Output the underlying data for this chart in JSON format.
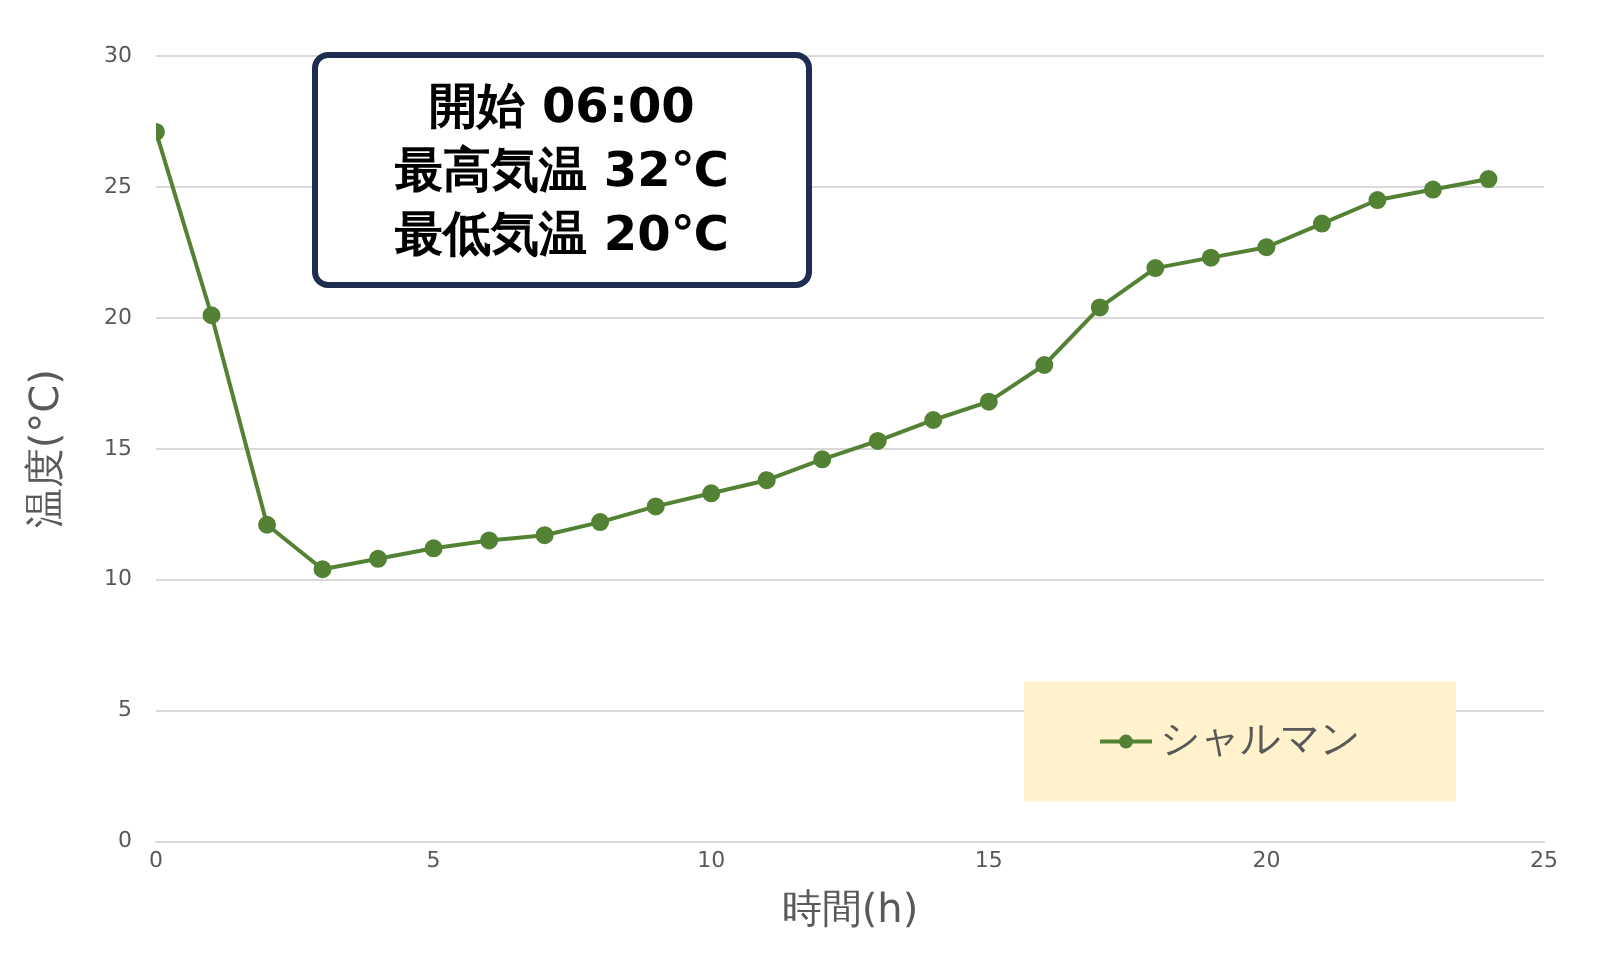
{
  "chart_data": {
    "type": "line",
    "xlabel": "時間(h)",
    "ylabel": "温度(°C)",
    "annotations": [
      "開始 06:00",
      "最高気温 32℃",
      "最低気温 20℃"
    ],
    "x": [
      0,
      1,
      2,
      3,
      4,
      5,
      6,
      7,
      8,
      9,
      10,
      11,
      12,
      13,
      14,
      15,
      16,
      17,
      18,
      19,
      20,
      21,
      22,
      23,
      24
    ],
    "series": [
      {
        "name": "シャルマン",
        "color": "#548235",
        "values": [
          27.1,
          20.1,
          12.1,
          10.4,
          10.8,
          11.2,
          11.5,
          11.7,
          12.2,
          12.8,
          13.3,
          13.8,
          14.6,
          15.3,
          16.1,
          16.8,
          18.2,
          20.4,
          21.9,
          22.3,
          22.7,
          23.6,
          24.5,
          24.9,
          25.3
        ]
      }
    ],
    "xlim": [
      0,
      25
    ],
    "xticks": [
      0,
      5,
      10,
      15,
      20,
      25
    ],
    "ylim": [
      0,
      30
    ],
    "yticks": [
      0,
      5,
      10,
      15,
      20,
      25,
      30
    ],
    "grid": "y",
    "legend": "bottom right",
    "marker": "circle",
    "line_style": "solid"
  }
}
